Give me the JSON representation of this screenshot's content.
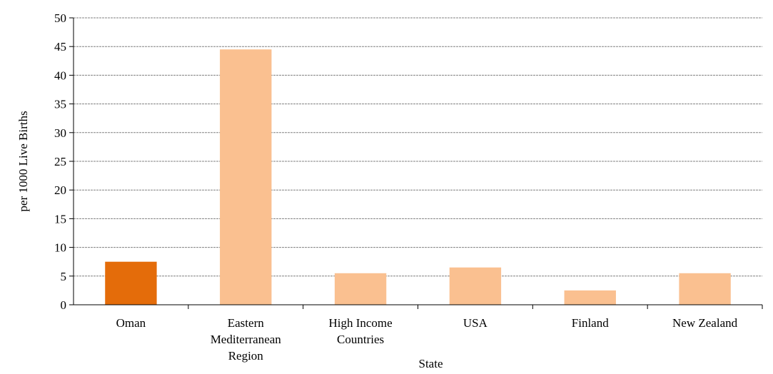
{
  "chart_data": {
    "type": "bar",
    "title": "",
    "xlabel": "State",
    "ylabel": "per 1000 Live Births",
    "ylim": [
      0,
      50
    ],
    "ytick_step": 5,
    "grid": true,
    "categories": [
      "Oman",
      "Eastern Mediterranean Region",
      "High Income Countries",
      "USA",
      "Finland",
      "New Zealand"
    ],
    "category_lines": [
      [
        "Oman"
      ],
      [
        "Eastern",
        "Mediterranean",
        "Region"
      ],
      [
        "High Income",
        "Countries"
      ],
      [
        "USA"
      ],
      [
        "Finland"
      ],
      [
        "New Zealand"
      ]
    ],
    "values": [
      7.5,
      44.5,
      5.5,
      6.5,
      2.5,
      5.5
    ],
    "colors": {
      "highlight": "#e46c0a",
      "default": "#fac090",
      "grid": "#808080",
      "axis": "#000000"
    },
    "highlight_index": 0
  }
}
